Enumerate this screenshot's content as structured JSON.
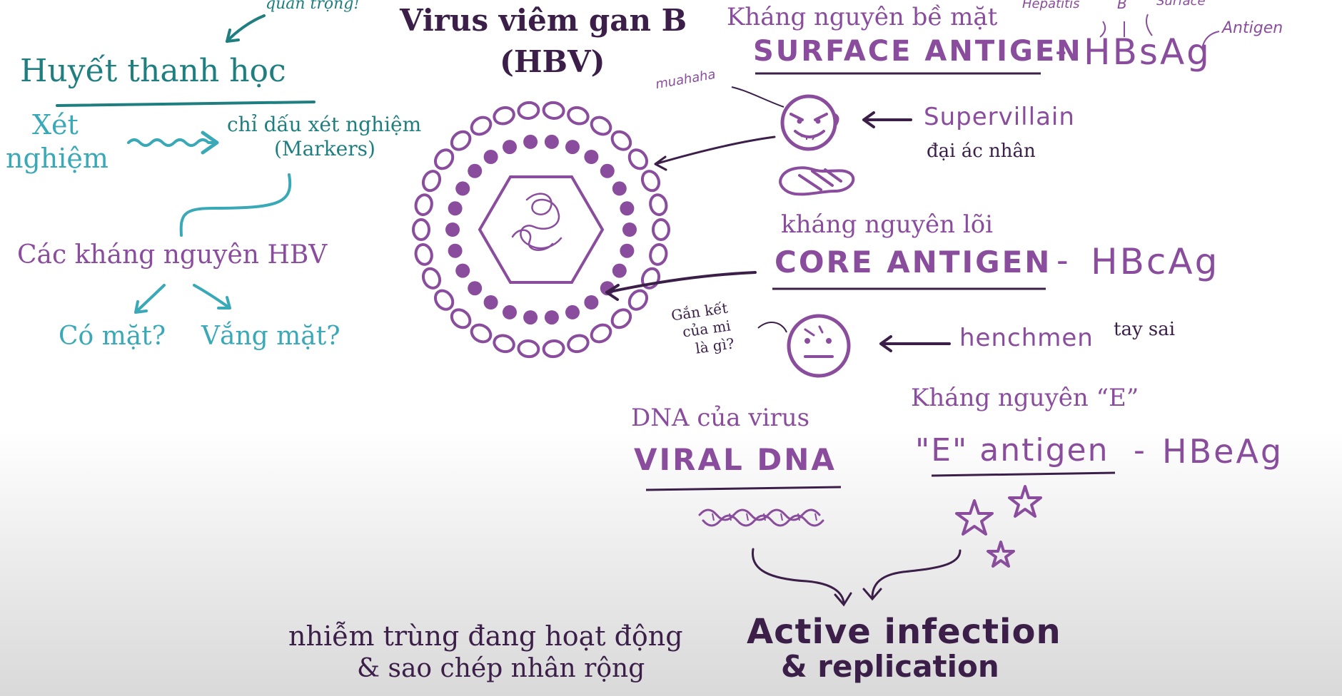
{
  "left": {
    "important_note": "quan trọng!",
    "serology_title": "Huyết thanh học",
    "test_line1": "Xét",
    "test_line2": "nghiệm",
    "markers_line1": "chỉ dấu xét nghiệm",
    "markers_line2": "(Markers)",
    "antigens_title": "Các kháng nguyên HBV",
    "present": "Có mặt?",
    "absent": "Vắng mặt?"
  },
  "title": {
    "line1": "Virus viêm gan B",
    "line2": "(HBV)"
  },
  "surface": {
    "vn": "Kháng nguyên bề mặt",
    "en": "SURFACE ANTIGEN",
    "dash": "-",
    "abbr": "HBsAg",
    "note_hepatitis": "Hepatitis",
    "note_b": "B",
    "note_surface": "Surface",
    "note_antigen": "Antigen",
    "muahaha": "muahaha",
    "supervillain": "Supervillain",
    "supervillain_vn": "đại ác nhân"
  },
  "core": {
    "vn": "kháng nguyên lõi",
    "en": "CORE ANTIGEN",
    "dash": "-",
    "abbr": "HBcAg",
    "question_line1": "Gắn kết",
    "question_line2": "của mi",
    "question_line3": "là gì?",
    "henchmen": "henchmen",
    "henchmen_vn": "tay sai"
  },
  "dna": {
    "vn": "DNA của virus",
    "en": "VIRAL DNA"
  },
  "e_antigen": {
    "vn": "Kháng nguyên “E”",
    "en": "\"E\" antigen",
    "dash": "-",
    "abbr": "HBeAg"
  },
  "bottom": {
    "vn_line1": "nhiễm trùng đang hoạt động",
    "vn_line2": "& sao chép nhân rộng",
    "en_line1": "Active infection",
    "en_line2": "& replication"
  },
  "colors": {
    "purple": "#8a4c9d",
    "teal": "#1f7f80",
    "teal_light": "#3aa9b7",
    "dark": "#3b1f49"
  }
}
